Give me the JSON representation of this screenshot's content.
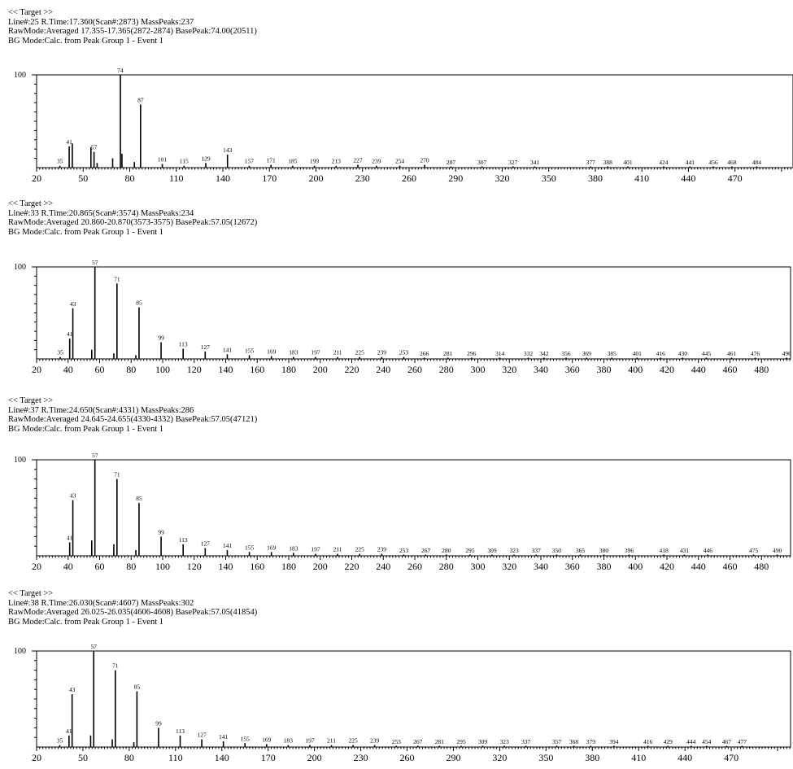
{
  "chart_data": [
    {
      "type": "bar",
      "header": {
        "target": "<< Target >>",
        "line1": "Line#:25  R.Time:17.360(Scan#:2873)  MassPeaks:237",
        "line2": "RawMode:Averaged 17.355-17.365(2872-2874) BasePeak:74.00(20511)",
        "line3": "BG Mode:Calc. from Peak  Group 1 - Event 1"
      },
      "ytick": "100",
      "xlim": [
        20,
        510
      ],
      "ylim": [
        0,
        100
      ],
      "xticks": [
        20,
        50,
        80,
        110,
        140,
        170,
        200,
        230,
        260,
        290,
        320,
        350,
        380,
        410,
        440,
        470
      ],
      "peaks": [
        {
          "x": 35,
          "y": 2,
          "label": "35"
        },
        {
          "x": 41,
          "y": 23,
          "label": "41"
        },
        {
          "x": 43,
          "y": 26,
          "label": ""
        },
        {
          "x": 55,
          "y": 22,
          "label": ""
        },
        {
          "x": 57,
          "y": 17,
          "label": "57"
        },
        {
          "x": 59,
          "y": 5,
          "label": ""
        },
        {
          "x": 69,
          "y": 10,
          "label": ""
        },
        {
          "x": 74,
          "y": 100,
          "label": "74"
        },
        {
          "x": 75,
          "y": 15,
          "label": ""
        },
        {
          "x": 83,
          "y": 6,
          "label": ""
        },
        {
          "x": 87,
          "y": 68,
          "label": "87"
        },
        {
          "x": 101,
          "y": 4,
          "label": "101"
        },
        {
          "x": 115,
          "y": 2,
          "label": "115"
        },
        {
          "x": 129,
          "y": 5,
          "label": "129"
        },
        {
          "x": 143,
          "y": 14,
          "label": "143"
        },
        {
          "x": 157,
          "y": 2,
          "label": "157"
        },
        {
          "x": 171,
          "y": 3,
          "label": "171"
        },
        {
          "x": 185,
          "y": 2,
          "label": "185"
        },
        {
          "x": 199,
          "y": 2,
          "label": "199"
        },
        {
          "x": 213,
          "y": 2,
          "label": "213"
        },
        {
          "x": 227,
          "y": 3,
          "label": "227"
        },
        {
          "x": 239,
          "y": 2,
          "label": "239"
        },
        {
          "x": 254,
          "y": 2,
          "label": "254"
        },
        {
          "x": 270,
          "y": 3,
          "label": "270"
        },
        {
          "x": 287,
          "y": 1,
          "label": "287"
        },
        {
          "x": 307,
          "y": 1,
          "label": "307"
        },
        {
          "x": 327,
          "y": 1,
          "label": "327"
        },
        {
          "x": 341,
          "y": 1,
          "label": "341"
        },
        {
          "x": 377,
          "y": 1,
          "label": "377"
        },
        {
          "x": 388,
          "y": 1,
          "label": "388"
        },
        {
          "x": 401,
          "y": 1,
          "label": "401"
        },
        {
          "x": 424,
          "y": 1,
          "label": "424"
        },
        {
          "x": 441,
          "y": 1,
          "label": "441"
        },
        {
          "x": 456,
          "y": 1,
          "label": "456"
        },
        {
          "x": 468,
          "y": 1,
          "label": "468"
        },
        {
          "x": 484,
          "y": 1,
          "label": "484"
        }
      ]
    },
    {
      "type": "bar",
      "header": {
        "target": "<< Target >>",
        "line1": "Line#:33  R.Time:20.865(Scan#:3574)  MassPeaks:234",
        "line2": "RawMode:Averaged 20.860-20.870(3573-3575) BasePeak:57.05(12672)",
        "line3": "BG Mode:Calc. from Peak  Group 1 - Event 1"
      },
      "ytick": "100",
      "xlim": [
        20,
        500
      ],
      "ylim": [
        0,
        100
      ],
      "xticks": [
        20,
        40,
        60,
        80,
        100,
        120,
        140,
        160,
        180,
        200,
        220,
        240,
        260,
        280,
        300,
        320,
        340,
        360,
        380,
        400,
        420,
        440,
        460,
        480
      ],
      "peaks": [
        {
          "x": 35,
          "y": 2,
          "label": "35"
        },
        {
          "x": 41,
          "y": 22,
          "label": "41"
        },
        {
          "x": 43,
          "y": 55,
          "label": "43"
        },
        {
          "x": 55,
          "y": 10,
          "label": ""
        },
        {
          "x": 57,
          "y": 100,
          "label": "57"
        },
        {
          "x": 69,
          "y": 6,
          "label": ""
        },
        {
          "x": 71,
          "y": 82,
          "label": "71"
        },
        {
          "x": 83,
          "y": 4,
          "label": ""
        },
        {
          "x": 85,
          "y": 56,
          "label": "85"
        },
        {
          "x": 99,
          "y": 18,
          "label": "99"
        },
        {
          "x": 113,
          "y": 11,
          "label": "113"
        },
        {
          "x": 127,
          "y": 8,
          "label": "127"
        },
        {
          "x": 141,
          "y": 5,
          "label": "141"
        },
        {
          "x": 155,
          "y": 4,
          "label": "155"
        },
        {
          "x": 169,
          "y": 3,
          "label": "169"
        },
        {
          "x": 183,
          "y": 2,
          "label": "183"
        },
        {
          "x": 197,
          "y": 2,
          "label": "197"
        },
        {
          "x": 211,
          "y": 2,
          "label": "211"
        },
        {
          "x": 225,
          "y": 2,
          "label": "225"
        },
        {
          "x": 239,
          "y": 2,
          "label": "239"
        },
        {
          "x": 253,
          "y": 2,
          "label": "253"
        },
        {
          "x": 266,
          "y": 1,
          "label": "266"
        },
        {
          "x": 281,
          "y": 1,
          "label": "281"
        },
        {
          "x": 296,
          "y": 1,
          "label": "296"
        },
        {
          "x": 314,
          "y": 1,
          "label": "314"
        },
        {
          "x": 332,
          "y": 1,
          "label": "332"
        },
        {
          "x": 342,
          "y": 1,
          "label": "342"
        },
        {
          "x": 356,
          "y": 1,
          "label": "356"
        },
        {
          "x": 369,
          "y": 1,
          "label": "369"
        },
        {
          "x": 385,
          "y": 1,
          "label": "385"
        },
        {
          "x": 401,
          "y": 1,
          "label": "401"
        },
        {
          "x": 416,
          "y": 1,
          "label": "416"
        },
        {
          "x": 430,
          "y": 1,
          "label": "430"
        },
        {
          "x": 445,
          "y": 1,
          "label": "445"
        },
        {
          "x": 461,
          "y": 1,
          "label": "461"
        },
        {
          "x": 476,
          "y": 1,
          "label": "476"
        },
        {
          "x": 496,
          "y": 1,
          "label": "496"
        }
      ]
    },
    {
      "type": "bar",
      "header": {
        "target": "<< Target >>",
        "line1": "Line#:37  R.Time:24.650(Scan#:4331)  MassPeaks:286",
        "line2": "RawMode:Averaged 24.645-24.655(4330-4332) BasePeak:57.05(47121)",
        "line3": "BG Mode:Calc. from Peak  Group 1 - Event 1"
      },
      "ytick": "100",
      "xlim": [
        20,
        500
      ],
      "ylim": [
        0,
        100
      ],
      "xticks": [
        20,
        40,
        60,
        80,
        100,
        120,
        140,
        160,
        180,
        200,
        220,
        240,
        260,
        280,
        300,
        320,
        340,
        360,
        380,
        400,
        420,
        440,
        460,
        480
      ],
      "peaks": [
        {
          "x": 41,
          "y": 14,
          "label": "41"
        },
        {
          "x": 43,
          "y": 58,
          "label": "43"
        },
        {
          "x": 55,
          "y": 16,
          "label": ""
        },
        {
          "x": 57,
          "y": 100,
          "label": "57"
        },
        {
          "x": 69,
          "y": 12,
          "label": ""
        },
        {
          "x": 71,
          "y": 80,
          "label": "71"
        },
        {
          "x": 83,
          "y": 6,
          "label": ""
        },
        {
          "x": 85,
          "y": 55,
          "label": "85"
        },
        {
          "x": 99,
          "y": 20,
          "label": "99"
        },
        {
          "x": 113,
          "y": 12,
          "label": "113"
        },
        {
          "x": 127,
          "y": 8,
          "label": "127"
        },
        {
          "x": 141,
          "y": 6,
          "label": "141"
        },
        {
          "x": 155,
          "y": 4,
          "label": "155"
        },
        {
          "x": 169,
          "y": 4,
          "label": "169"
        },
        {
          "x": 183,
          "y": 3,
          "label": "183"
        },
        {
          "x": 197,
          "y": 2,
          "label": "197"
        },
        {
          "x": 211,
          "y": 2,
          "label": "211"
        },
        {
          "x": 225,
          "y": 2,
          "label": "225"
        },
        {
          "x": 239,
          "y": 2,
          "label": "239"
        },
        {
          "x": 253,
          "y": 1,
          "label": "253"
        },
        {
          "x": 267,
          "y": 1,
          "label": "267"
        },
        {
          "x": 280,
          "y": 1,
          "label": "280"
        },
        {
          "x": 295,
          "y": 1,
          "label": "295"
        },
        {
          "x": 309,
          "y": 1,
          "label": "309"
        },
        {
          "x": 323,
          "y": 1,
          "label": "323"
        },
        {
          "x": 337,
          "y": 1,
          "label": "337"
        },
        {
          "x": 350,
          "y": 1,
          "label": "350"
        },
        {
          "x": 365,
          "y": 1,
          "label": "365"
        },
        {
          "x": 380,
          "y": 1,
          "label": "380"
        },
        {
          "x": 396,
          "y": 1,
          "label": "396"
        },
        {
          "x": 418,
          "y": 1,
          "label": "418"
        },
        {
          "x": 431,
          "y": 1,
          "label": "431"
        },
        {
          "x": 446,
          "y": 1,
          "label": "446"
        },
        {
          "x": 475,
          "y": 1,
          "label": "475"
        },
        {
          "x": 490,
          "y": 1,
          "label": "490"
        }
      ]
    },
    {
      "type": "bar",
      "header": {
        "target": "<< Target >>",
        "line1": "Line#:38  R.Time:26.030(Scan#:4607)  MassPeaks:302",
        "line2": "RawMode:Averaged 26.025-26.035(4606-4608) BasePeak:57.05(41854)",
        "line3": "BG Mode:Calc. from Peak  Group 1 - Event 1"
      },
      "ytick": "100",
      "xlim": [
        20,
        510
      ],
      "ylim": [
        0,
        100
      ],
      "xticks": [
        20,
        50,
        80,
        110,
        140,
        170,
        200,
        230,
        260,
        290,
        320,
        350,
        380,
        410,
        440,
        470
      ],
      "peaks": [
        {
          "x": 35,
          "y": 2,
          "label": "35"
        },
        {
          "x": 41,
          "y": 12,
          "label": "41"
        },
        {
          "x": 43,
          "y": 55,
          "label": "43"
        },
        {
          "x": 55,
          "y": 12,
          "label": ""
        },
        {
          "x": 57,
          "y": 100,
          "label": "57"
        },
        {
          "x": 69,
          "y": 8,
          "label": ""
        },
        {
          "x": 71,
          "y": 80,
          "label": "71"
        },
        {
          "x": 83,
          "y": 5,
          "label": ""
        },
        {
          "x": 85,
          "y": 58,
          "label": "85"
        },
        {
          "x": 99,
          "y": 20,
          "label": "99"
        },
        {
          "x": 113,
          "y": 12,
          "label": "113"
        },
        {
          "x": 127,
          "y": 8,
          "label": "127"
        },
        {
          "x": 141,
          "y": 6,
          "label": "141"
        },
        {
          "x": 155,
          "y": 4,
          "label": "155"
        },
        {
          "x": 169,
          "y": 3,
          "label": "169"
        },
        {
          "x": 183,
          "y": 2,
          "label": "183"
        },
        {
          "x": 197,
          "y": 2,
          "label": "197"
        },
        {
          "x": 211,
          "y": 2,
          "label": "211"
        },
        {
          "x": 225,
          "y": 2,
          "label": "225"
        },
        {
          "x": 239,
          "y": 2,
          "label": "239"
        },
        {
          "x": 253,
          "y": 1,
          "label": "253"
        },
        {
          "x": 267,
          "y": 1,
          "label": "267"
        },
        {
          "x": 281,
          "y": 1,
          "label": "281"
        },
        {
          "x": 295,
          "y": 1,
          "label": "295"
        },
        {
          "x": 309,
          "y": 1,
          "label": "309"
        },
        {
          "x": 323,
          "y": 1,
          "label": "323"
        },
        {
          "x": 337,
          "y": 1,
          "label": "337"
        },
        {
          "x": 357,
          "y": 1,
          "label": "357"
        },
        {
          "x": 368,
          "y": 1,
          "label": "368"
        },
        {
          "x": 379,
          "y": 1,
          "label": "379"
        },
        {
          "x": 394,
          "y": 1,
          "label": "394"
        },
        {
          "x": 416,
          "y": 1,
          "label": "416"
        },
        {
          "x": 429,
          "y": 1,
          "label": "429"
        },
        {
          "x": 444,
          "y": 1,
          "label": "444"
        },
        {
          "x": 454,
          "y": 1,
          "label": "454"
        },
        {
          "x": 467,
          "y": 1,
          "label": "467"
        },
        {
          "x": 477,
          "y": 1,
          "label": "477"
        }
      ]
    }
  ]
}
